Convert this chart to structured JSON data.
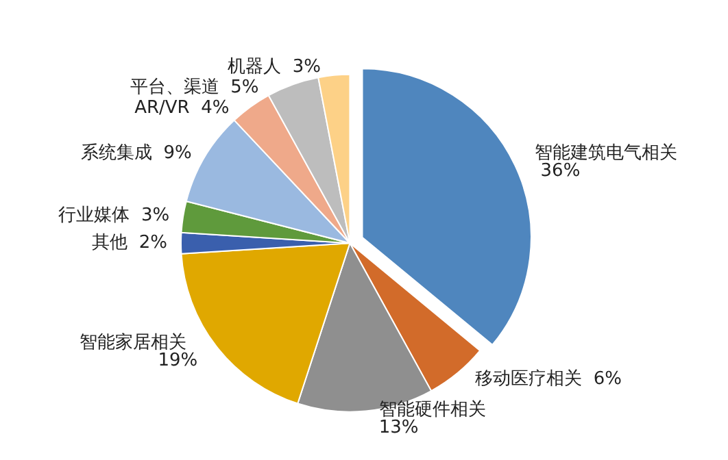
{
  "chart_data": {
    "type": "pie",
    "categories": [
      "智能建筑电气相关",
      "移动医疗相关",
      "智能硬件相关",
      "智能家居相关",
      "其他",
      "行业媒体",
      "系统集成",
      "AR/VR",
      "平台、渠道",
      "机器人"
    ],
    "values": [
      36,
      6,
      13,
      19,
      2,
      3,
      9,
      4,
      5,
      3
    ],
    "colors": [
      "#4f86be",
      "#d26b2a",
      "#8f8f8f",
      "#e0a800",
      "#3a5fad",
      "#5f9a3c",
      "#9ab9e0",
      "#efa98a",
      "#bdbdbd",
      "#fdd187"
    ],
    "value_labels": [
      "36%",
      "6%",
      "13%",
      "19%",
      "2%",
      "3%",
      "9%",
      "4%",
      "5%",
      "3%"
    ],
    "legend": false
  }
}
